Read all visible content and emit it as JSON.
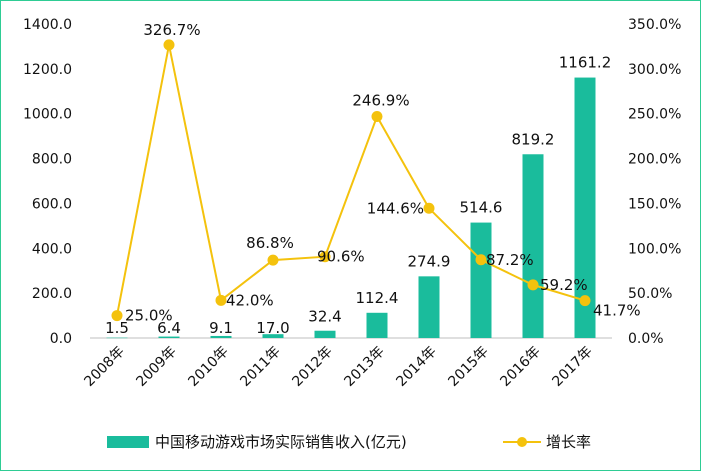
{
  "chart_data": {
    "type": "bar",
    "title": "",
    "categories": [
      "2008年",
      "2009年",
      "2010年",
      "2011年",
      "2012年",
      "2013年",
      "2014年",
      "2015年",
      "2016年",
      "2017年"
    ],
    "series": [
      {
        "name": "中国移动游戏市场实际销售收入(亿元)",
        "type": "bar",
        "axis": "left",
        "color": "#1abc9c",
        "values": [
          1.5,
          6.4,
          9.1,
          17.0,
          32.4,
          112.4,
          274.9,
          514.6,
          819.2,
          1161.2
        ],
        "labels": [
          "1.5",
          "6.4",
          "9.1",
          "17.0",
          "32.4",
          "112.4",
          "274.9",
          "514.6",
          "819.2",
          "1161.2"
        ]
      },
      {
        "name": "增长率",
        "type": "line",
        "axis": "right",
        "color": "#f4c20d",
        "values": [
          25.0,
          326.7,
          42.0,
          86.8,
          90.6,
          246.9,
          144.6,
          87.2,
          59.2,
          41.7
        ],
        "labels": [
          "25.0%",
          "326.7%",
          "42.0%",
          "86.8%",
          "90.6%",
          "246.9%",
          "144.6%",
          "87.2%",
          "59.2%",
          "41.7%"
        ]
      }
    ],
    "y_left": {
      "min": 0,
      "max": 1400,
      "ticks": [
        0,
        200,
        400,
        600,
        800,
        1000,
        1200,
        1400
      ],
      "tick_labels": [
        "0.0",
        "200.0",
        "400.0",
        "600.0",
        "800.0",
        "1000.0",
        "1200.0",
        "1400.0"
      ]
    },
    "y_right": {
      "min": 0,
      "max": 350,
      "ticks": [
        0,
        50,
        100,
        150,
        200,
        250,
        300,
        350
      ],
      "tick_labels": [
        "0.0%",
        "50.0%",
        "100.0%",
        "150.0%",
        "200.0%",
        "250.0%",
        "300.0%",
        "350.0%"
      ]
    },
    "grid": false,
    "legend": {
      "position": "bottom",
      "items": [
        "中国移动游戏市场实际销售收入(亿元)",
        "增长率"
      ]
    }
  }
}
